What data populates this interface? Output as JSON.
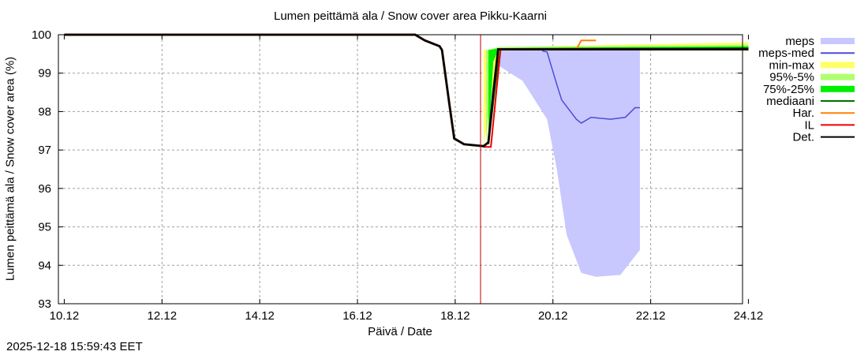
{
  "chart_data": {
    "type": "area",
    "title": "Lumen peittämä ala / Snow cover area Pikku-Kaarni",
    "xlabel": "Päivä / Date",
    "ylabel": "Lumen peittämä ala / Snow cover area (%)",
    "ylim": [
      93,
      100
    ],
    "xlim": [
      "10.12",
      "24.12"
    ],
    "x_ticks": [
      "10.12",
      "12.12",
      "14.12",
      "16.12",
      "18.12",
      "20.12",
      "22.12",
      "24.12"
    ],
    "y_ticks": [
      93,
      94,
      95,
      96,
      97,
      98,
      99,
      100
    ],
    "grid": true,
    "legend_position": "right-outside",
    "current_time_marker": "18.12 ~15:59",
    "legend": [
      {
        "label": "meps",
        "color": "#c8c8ff",
        "style": "band"
      },
      {
        "label": "meps-med",
        "color": "#4c4cd8",
        "style": "line"
      },
      {
        "label": "min-max",
        "color": "#ffff66",
        "style": "band"
      },
      {
        "label": "95%-5%",
        "color": "#b0ff70",
        "style": "band"
      },
      {
        "label": "75%-25%",
        "color": "#00ee00",
        "style": "band"
      },
      {
        "label": "mediaani",
        "color": "#007000",
        "style": "line"
      },
      {
        "label": "Har.",
        "color": "#ff8000",
        "style": "line"
      },
      {
        "label": "IL",
        "color": "#ee0000",
        "style": "line"
      },
      {
        "label": "Det.",
        "color": "#000000",
        "style": "line"
      }
    ],
    "series": [
      {
        "name": "Det.",
        "x": [
          "10.12",
          "17.3",
          "17.5",
          "17.8",
          "17.85",
          "18.0",
          "18.1",
          "18.3",
          "18.7",
          "18.8",
          "18.9",
          "19.0",
          "24.12"
        ],
        "values": [
          100,
          100,
          99.85,
          99.7,
          99.6,
          98.2,
          97.3,
          97.15,
          97.1,
          97.2,
          98.5,
          99.62,
          99.62
        ]
      },
      {
        "name": "meps-med",
        "x": [
          "19.9",
          "20.0",
          "20.2",
          "20.3",
          "20.6",
          "20.7",
          "20.9",
          "21.3",
          "21.6",
          "21.8",
          "21.9"
        ],
        "values": [
          99.58,
          99.55,
          98.7,
          98.3,
          97.8,
          97.7,
          97.85,
          97.8,
          97.85,
          98.1,
          98.1
        ]
      },
      {
        "name": "meps",
        "x": [
          "19.0",
          "19.5",
          "20.0",
          "20.2",
          "20.4",
          "20.7",
          "21.0",
          "21.5",
          "21.9"
        ],
        "min": [
          99.2,
          98.8,
          97.8,
          96.5,
          94.8,
          93.8,
          93.7,
          93.75,
          94.4
        ],
        "max": [
          99.62,
          99.62,
          99.62,
          99.62,
          99.62,
          99.62,
          99.62,
          99.62,
          99.62
        ]
      },
      {
        "name": "Har.",
        "x": [
          "20.6",
          "20.7",
          "21.0"
        ],
        "values": [
          99.62,
          99.85,
          99.85
        ]
      },
      {
        "name": "min-max",
        "x": [
          "18.7",
          "19.0",
          "20.0",
          "22.0",
          "24.12"
        ],
        "min": [
          97.1,
          99.6,
          99.6,
          99.6,
          99.6
        ],
        "max": [
          99.6,
          99.65,
          99.7,
          99.75,
          99.8
        ]
      }
    ]
  },
  "footer": {
    "timestamp": "2025-12-18 15:59:43 EET"
  }
}
